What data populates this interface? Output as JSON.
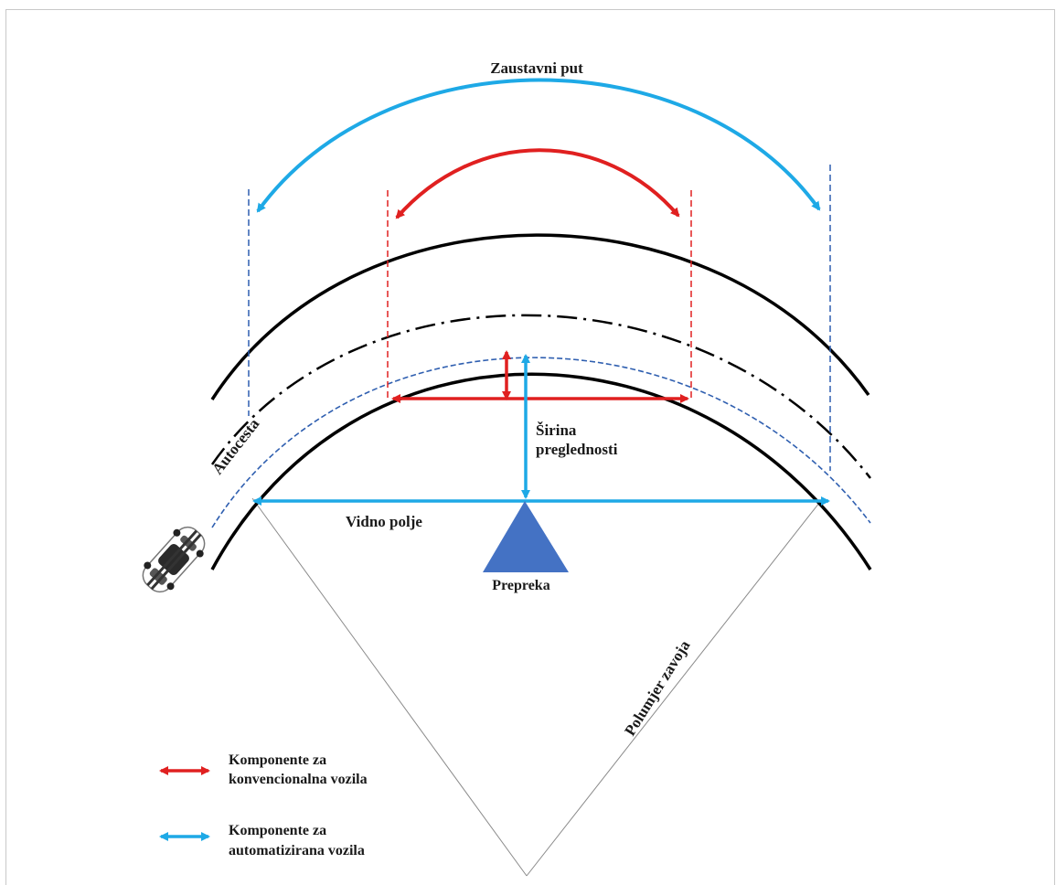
{
  "labels": {
    "stopping_distance": "Zaustavni put",
    "sight_width_line1": "Širina",
    "sight_width_line2": "preglednosti",
    "field_of_view": "Vidno polje",
    "obstacle": "Prepreka",
    "highway": "Autocesta",
    "curve_radius": "Polumjer zavoja"
  },
  "legend": {
    "conventional_line1": "Komponente za",
    "conventional_line2": "konvencionalna vozila",
    "automated_line1": "Komponente za",
    "automated_line2": "automatizirana vozila"
  },
  "colors": {
    "conventional": "#e02020",
    "automated": "#1ea9e6",
    "road": "#000000",
    "guide_blue": "#2f5fb0",
    "obstacle": "#4472c4"
  }
}
